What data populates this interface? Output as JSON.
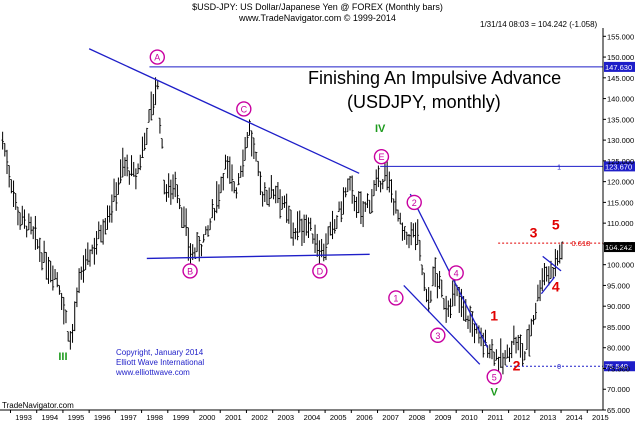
{
  "header": {
    "title": "$USD-JPY: US Dollar/Japanese Yen @ FOREX (Monthly bars)",
    "subtitle": "www.TradeNavigator.com © 1999-2014"
  },
  "last_info": "1/31/14 08:03 = 104.242 (-1.058)",
  "annotation": {
    "line1": "Finishing An Impulsive Advance",
    "line2": "(USDJPY, monthly)"
  },
  "copyright": {
    "line1": "Copyright, January 2014",
    "line2": "Elliott Wave International",
    "line3": "www.elliottwave.com"
  },
  "footer_brand": "TradeNavigator.com",
  "colors": {
    "bars": "#000000",
    "trendlines": "#1e1ec8",
    "circle_labels": "#c800a0",
    "green_labels": "#1e9b1e",
    "red_labels": "#e10000",
    "price_box": "#1e1ec8",
    "current_price_box": "#000000"
  },
  "chart_data": {
    "type": "ohlc",
    "title": "$USD-JPY: US Dollar/Japanese Yen @ FOREX (Monthly bars)",
    "x_range": [
      1992.6,
      2015.6
    ],
    "ylim": [
      65,
      157
    ],
    "x_ticks": [
      "1993",
      "1994",
      "1995",
      "1996",
      "1997",
      "1998",
      "1999",
      "2000",
      "2001",
      "2002",
      "2003",
      "2004",
      "2005",
      "2006",
      "2007",
      "2008",
      "2009",
      "2010",
      "2011",
      "2012",
      "2013",
      "2014",
      "2015"
    ],
    "y_ticks": [
      65,
      70,
      75,
      80,
      85,
      90,
      95,
      100,
      105,
      110,
      115,
      120,
      125,
      130,
      135,
      140,
      145,
      150,
      155
    ],
    "price_path": [
      [
        1992.7,
        130
      ],
      [
        1993.3,
        112
      ],
      [
        1993.8,
        108
      ],
      [
        1994.3,
        101
      ],
      [
        1994.8,
        97
      ],
      [
        1995.3,
        81
      ],
      [
        1995.7,
        98
      ],
      [
        1996.3,
        106
      ],
      [
        1996.9,
        115
      ],
      [
        1997.3,
        124
      ],
      [
        1997.8,
        121
      ],
      [
        1998.6,
        144
      ],
      [
        1998.9,
        117
      ],
      [
        1999.3,
        120
      ],
      [
        1999.9,
        102
      ],
      [
        2000.5,
        107
      ],
      [
        2001.2,
        124
      ],
      [
        2001.6,
        118
      ],
      [
        2002.1,
        133
      ],
      [
        2002.6,
        117
      ],
      [
        2003.2,
        118
      ],
      [
        2003.8,
        108
      ],
      [
        2004.3,
        110
      ],
      [
        2004.9,
        103
      ],
      [
        2005.4,
        110
      ],
      [
        2005.9,
        119
      ],
      [
        2006.4,
        112
      ],
      [
        2006.9,
        118
      ],
      [
        2007.3,
        122
      ],
      [
        2007.7,
        114
      ],
      [
        2008.0,
        106
      ],
      [
        2008.5,
        108
      ],
      [
        2008.9,
        90
      ],
      [
        2009.2,
        98
      ],
      [
        2009.6,
        90
      ],
      [
        2010.0,
        93
      ],
      [
        2010.4,
        88
      ],
      [
        2010.9,
        82
      ],
      [
        2011.3,
        80
      ],
      [
        2011.8,
        76
      ],
      [
        2012.2,
        82
      ],
      [
        2012.6,
        78
      ],
      [
        2012.9,
        86
      ],
      [
        2013.3,
        98
      ],
      [
        2013.6,
        98
      ],
      [
        2013.9,
        102
      ],
      [
        2014.05,
        104
      ]
    ],
    "horizontal_levels": [
      {
        "value": 147.63,
        "label": "147.630",
        "style": "solid"
      },
      {
        "value": 123.67,
        "label": "123.670",
        "style": "solid"
      },
      {
        "value": 75.54,
        "label": "75.540",
        "style": "dotted"
      }
    ],
    "current_price": {
      "value": 104.242,
      "label": "104.242"
    },
    "fib_level": {
      "value": 105.2,
      "label": "0.618"
    },
    "level_markers": [
      {
        "value": 123.67,
        "label": "1"
      },
      {
        "value": 75.54,
        "label": "0"
      }
    ],
    "trendlines": [
      {
        "from": [
          1996.0,
          152
        ],
        "to": [
          2006.3,
          122
        ]
      },
      {
        "from": [
          1998.2,
          101.5
        ],
        "to": [
          2006.7,
          102.5
        ]
      },
      {
        "from": [
          2008.25,
          117
        ],
        "to": [
          2011.2,
          80
        ]
      },
      {
        "from": [
          2008.0,
          95
        ],
        "to": [
          2010.9,
          76
        ]
      },
      {
        "from": [
          2013.3,
          102
        ],
        "to": [
          2014.0,
          98.5
        ]
      },
      {
        "from": [
          2013.25,
          93
        ],
        "to": [
          2013.75,
          97
        ]
      }
    ],
    "circle_labels": [
      {
        "text": "A",
        "x": 1998.6,
        "y": 150
      },
      {
        "text": "B",
        "x": 1999.85,
        "y": 98.5
      },
      {
        "text": "C",
        "x": 2001.9,
        "y": 137.5
      },
      {
        "text": "D",
        "x": 2004.8,
        "y": 98.5
      },
      {
        "text": "E",
        "x": 2007.15,
        "y": 126
      },
      {
        "text": "1",
        "x": 2007.7,
        "y": 92
      },
      {
        "text": "2",
        "x": 2008.4,
        "y": 115
      },
      {
        "text": "3",
        "x": 2009.3,
        "y": 83
      },
      {
        "text": "4",
        "x": 2010.0,
        "y": 98
      },
      {
        "text": "5",
        "x": 2011.45,
        "y": 73
      }
    ],
    "green_labels": [
      {
        "text": "III",
        "x": 1995.0,
        "y": 77
      },
      {
        "text": "IV",
        "x": 2007.1,
        "y": 132
      },
      {
        "text": "V",
        "x": 2011.45,
        "y": 68.5
      }
    ],
    "red_labels": [
      {
        "text": "1",
        "x": 2011.45,
        "y": 86.5
      },
      {
        "text": "2",
        "x": 2012.3,
        "y": 74.5
      },
      {
        "text": "3",
        "x": 2012.95,
        "y": 106.5
      },
      {
        "text": "4",
        "x": 2013.8,
        "y": 93.5
      },
      {
        "text": "5",
        "x": 2013.8,
        "y": 108.5
      }
    ]
  }
}
